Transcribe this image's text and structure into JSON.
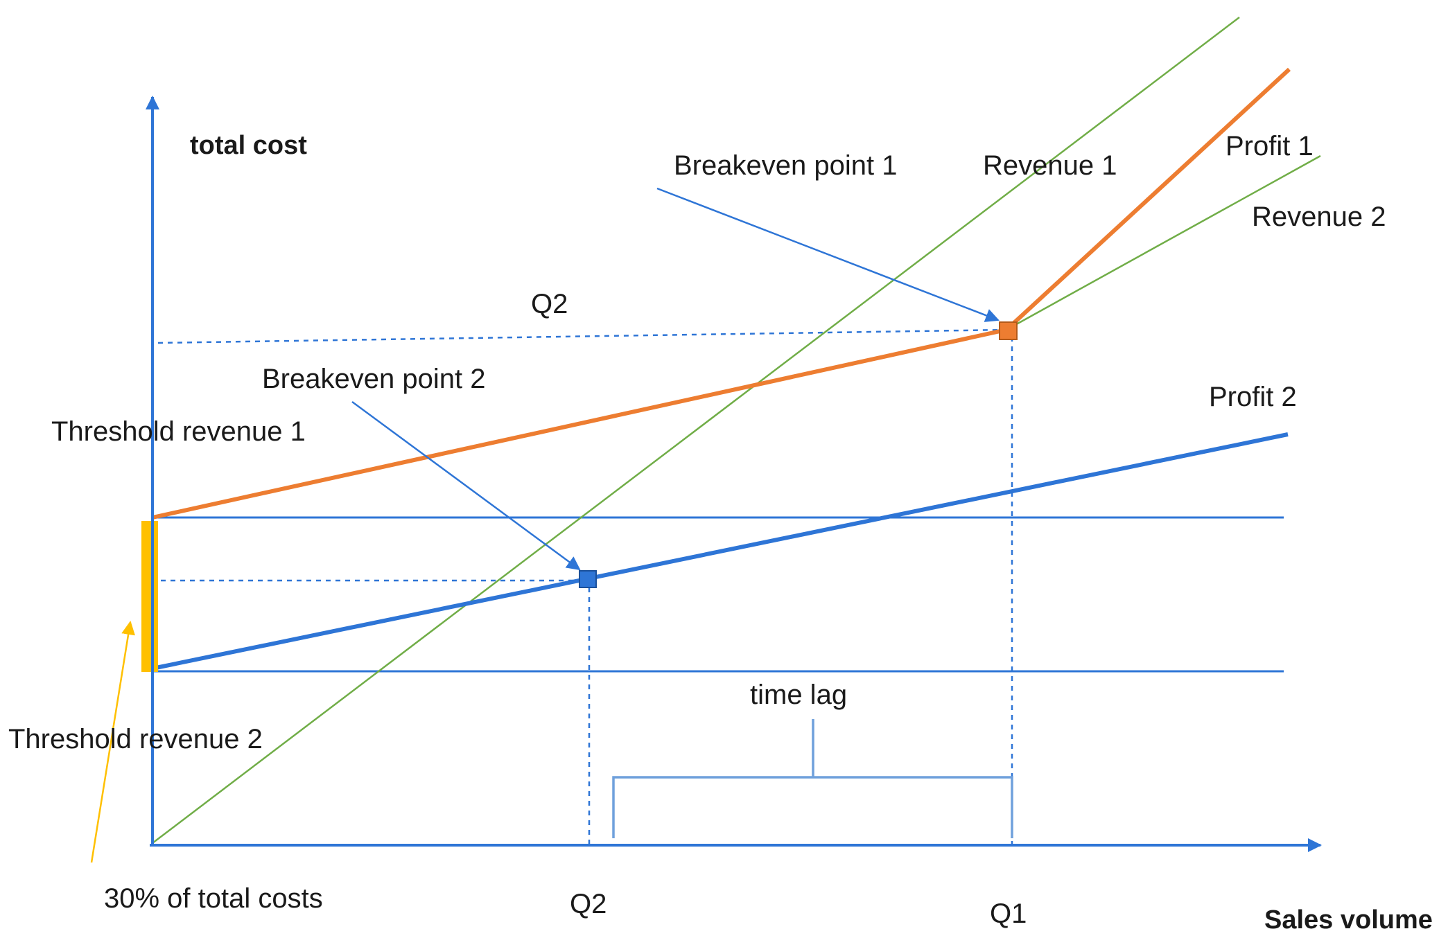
{
  "labels": {
    "y_axis": "total cost",
    "x_axis": "Sales volume",
    "breakeven_1": "Breakeven point 1",
    "breakeven_2": "Breakeven point 2",
    "revenue_1": "Revenue 1",
    "revenue_2": "Revenue 2",
    "profit_1": "Profit 1",
    "profit_2": "Profit 2",
    "q2_top": "Q2",
    "threshold_1": "Threshold revenue 1",
    "threshold_2": "Threshold revenue 2",
    "time_lag": "time lag",
    "pct_total_costs": "30% of total costs",
    "q2_axis": "Q2",
    "q1_axis": "Q1"
  },
  "colors": {
    "axis": "#2e75d6",
    "revenue": "#70ad47",
    "profit_1": "#ed7d31",
    "profit_2": "#2e75d6",
    "threshold_bar": "#ffc000",
    "bracket": "#6fa0dc"
  }
}
